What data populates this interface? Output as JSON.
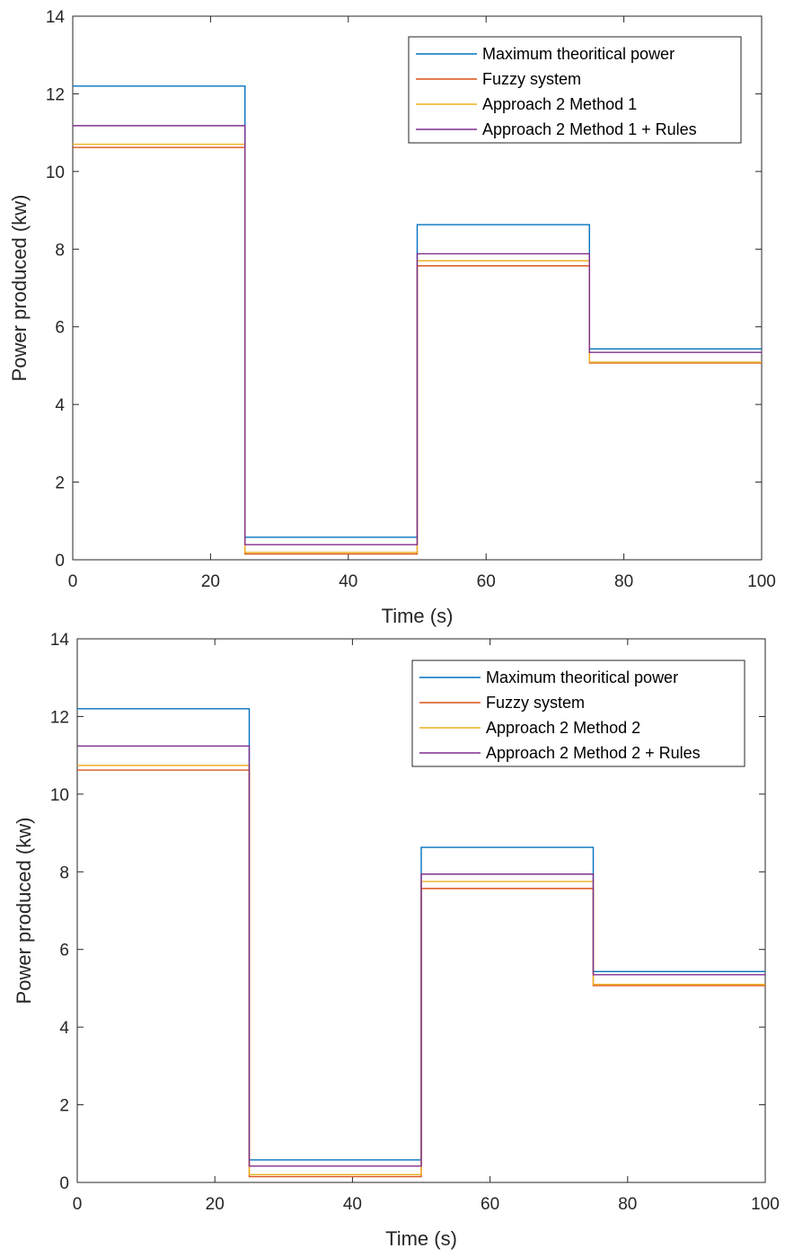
{
  "chart_data": [
    {
      "type": "line",
      "xlabel": "Time (s)",
      "ylabel": "Power produced (kw)",
      "xlim": [
        0,
        100
      ],
      "ylim": [
        0,
        14
      ],
      "xticks": [
        0,
        20,
        40,
        60,
        80,
        100
      ],
      "yticks": [
        0,
        2,
        4,
        6,
        8,
        10,
        12,
        14
      ],
      "grid": false,
      "legend_position": "top-right",
      "step_edges": [
        0,
        25,
        50,
        75,
        100
      ],
      "series": [
        {
          "name": "Maximum theoritical power",
          "color": "#0072BD",
          "values": [
            12.2,
            0.58,
            8.63,
            5.43
          ]
        },
        {
          "name": "Fuzzy system",
          "color": "#D95319",
          "values": [
            10.62,
            0.15,
            7.57,
            5.07
          ]
        },
        {
          "name": "Approach 2 Method 1",
          "color": "#EDB120",
          "values": [
            10.7,
            0.19,
            7.7,
            5.09
          ]
        },
        {
          "name": "Approach 2 Method 1 + Rules",
          "color": "#7E2F8E",
          "values": [
            11.18,
            0.39,
            7.88,
            5.34
          ]
        }
      ]
    },
    {
      "type": "line",
      "xlabel": "Time (s)",
      "ylabel": "Power produced (kw)",
      "xlim": [
        0,
        100
      ],
      "ylim": [
        0,
        14
      ],
      "xticks": [
        0,
        20,
        40,
        60,
        80,
        100
      ],
      "yticks": [
        0,
        2,
        4,
        6,
        8,
        10,
        12,
        14
      ],
      "grid": false,
      "legend_position": "top-right",
      "step_edges": [
        0,
        25,
        50,
        75,
        100
      ],
      "series": [
        {
          "name": "Maximum theoritical power",
          "color": "#0072BD",
          "values": [
            12.2,
            0.58,
            8.63,
            5.43
          ]
        },
        {
          "name": "Fuzzy system",
          "color": "#D95319",
          "values": [
            10.62,
            0.15,
            7.57,
            5.07
          ]
        },
        {
          "name": "Approach 2 Method 2",
          "color": "#EDB120",
          "values": [
            10.74,
            0.2,
            7.75,
            5.1
          ]
        },
        {
          "name": "Approach 2 Method 2 + Rules",
          "color": "#7E2F8E",
          "values": [
            11.24,
            0.42,
            7.94,
            5.35
          ]
        }
      ]
    }
  ]
}
